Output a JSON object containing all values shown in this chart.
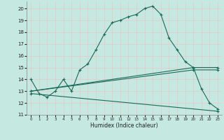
{
  "xlabel": "Humidex (Indice chaleur)",
  "background_color": "#c5e8e0",
  "grid_color": "#e8c8c8",
  "line_color": "#1a6a5a",
  "xlim": [
    -0.5,
    23.5
  ],
  "ylim": [
    11,
    20.6
  ],
  "yticks": [
    11,
    12,
    13,
    14,
    15,
    16,
    17,
    18,
    19,
    20
  ],
  "xticks": [
    0,
    1,
    2,
    3,
    4,
    5,
    6,
    7,
    8,
    9,
    10,
    11,
    12,
    13,
    14,
    15,
    16,
    17,
    18,
    19,
    20,
    21,
    22,
    23
  ],
  "line1_x": [
    0,
    1,
    2,
    3,
    4,
    5,
    6,
    7,
    8,
    9,
    10,
    11,
    12,
    13,
    14,
    15,
    16,
    17,
    18,
    19,
    20,
    21,
    22,
    23
  ],
  "line1_y": [
    14.0,
    12.8,
    12.5,
    13.0,
    14.0,
    13.0,
    14.8,
    15.3,
    16.5,
    17.8,
    18.8,
    19.0,
    19.3,
    19.5,
    20.0,
    20.2,
    19.5,
    17.5,
    16.5,
    15.5,
    15.0,
    13.2,
    12.0,
    11.5
  ],
  "line2_x": [
    0,
    20,
    23
  ],
  "line2_y": [
    13.0,
    15.0,
    15.0
  ],
  "line3_x": [
    0,
    20,
    23
  ],
  "line3_y": [
    13.0,
    14.8,
    14.8
  ],
  "line4_x": [
    0,
    23
  ],
  "line4_y": [
    12.8,
    11.3
  ]
}
